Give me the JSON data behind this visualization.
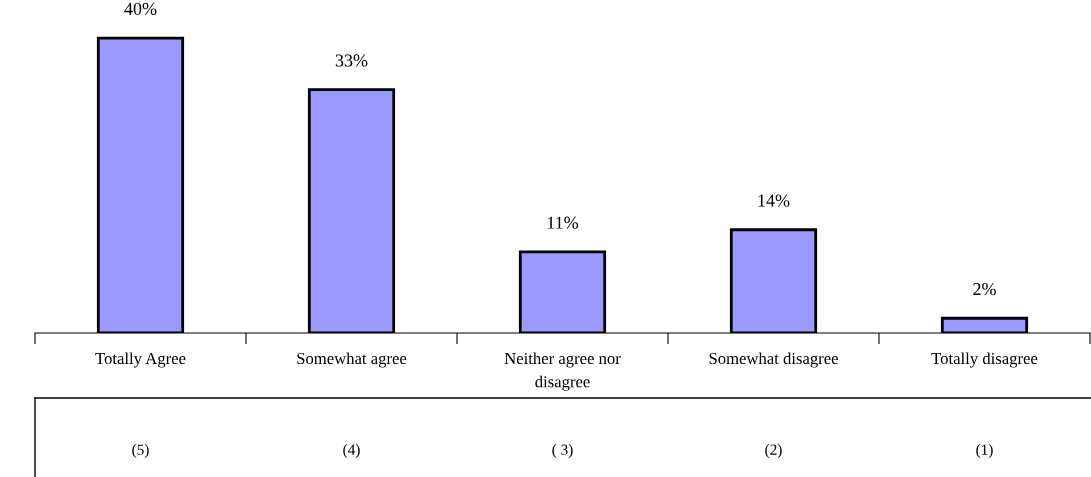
{
  "chart_data": {
    "type": "bar",
    "categories": [
      "Totally Agree",
      "Somewhat agree",
      "Neither agree nor\ndisagree",
      "Somewhat disagree",
      "Totally disagree"
    ],
    "values": [
      40,
      33,
      11,
      14,
      2
    ],
    "value_labels": [
      "40%",
      "33%",
      "11%",
      "14%",
      "2%"
    ],
    "color": "#9999ff",
    "annotations": [
      "(5)",
      "(4)",
      "( 3)",
      "(2)",
      "(1)"
    ],
    "grid": false,
    "legend": false
  }
}
